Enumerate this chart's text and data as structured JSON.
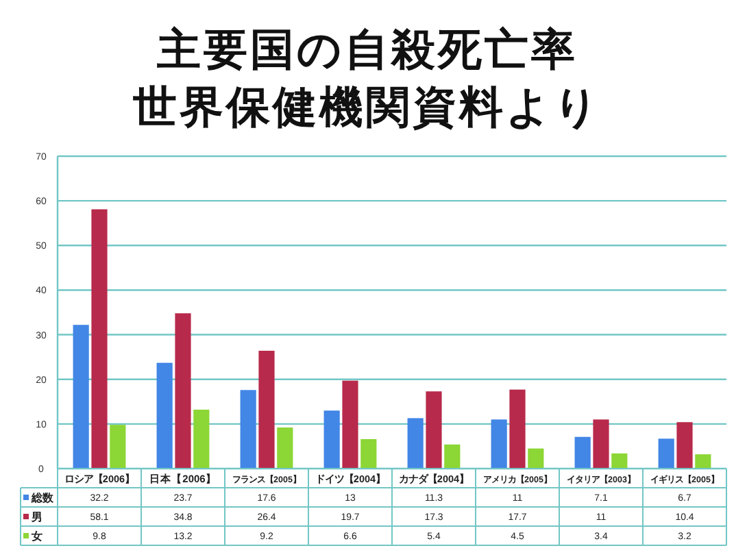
{
  "chart_data": {
    "type": "bar",
    "title": "主要国の自殺死亡率",
    "subtitle": "世界保健機関資料より",
    "categories": [
      "ロシア【2006】",
      "日本【2006】",
      "フランス【2005】",
      "ドイツ【2004】",
      "カナダ【2004】",
      "アメリカ【2005】",
      "イタリア【2003】",
      "イギリス【2005】"
    ],
    "series": [
      {
        "name": "総数",
        "color": "#4286e6",
        "values": [
          32.2,
          23.7,
          17.6,
          13,
          11.3,
          11,
          7.1,
          6.7
        ]
      },
      {
        "name": "男",
        "color": "#b82a4b",
        "values": [
          58.1,
          34.8,
          26.4,
          19.7,
          17.3,
          17.7,
          11,
          10.4
        ]
      },
      {
        "name": "女",
        "color": "#8cd636",
        "values": [
          9.8,
          13.2,
          9.2,
          6.6,
          5.4,
          4.5,
          3.4,
          3.2
        ]
      }
    ],
    "ylim": [
      0,
      70
    ],
    "yticks": [
      0,
      10,
      20,
      30,
      40,
      50,
      60,
      70
    ],
    "grid": "y",
    "legend": "bottom",
    "data_labels": true
  }
}
